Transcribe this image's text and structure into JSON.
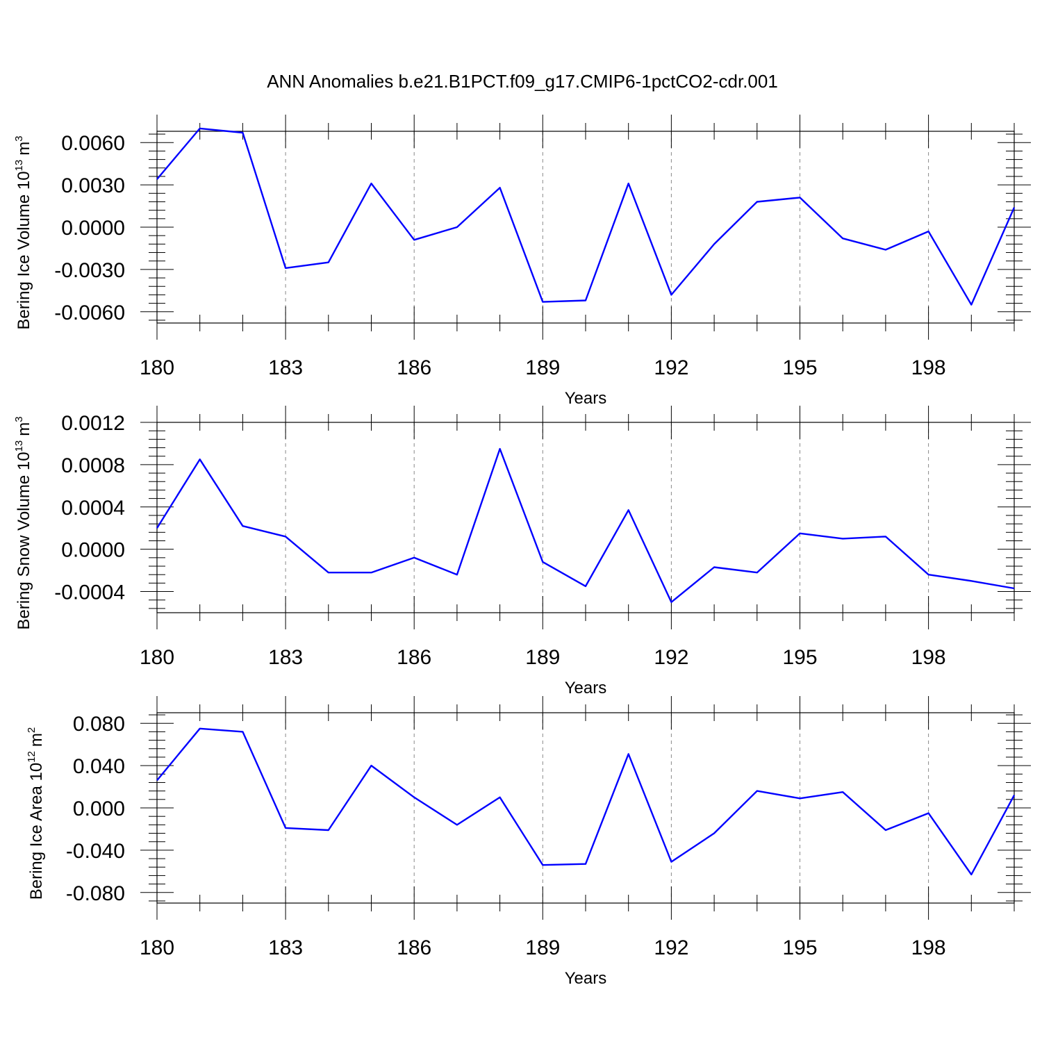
{
  "figure": {
    "title": "ANN Anomalies b.e21.B1PCT.f09_g17.CMIP6-1pctCO2-cdr.001",
    "line_color": "#0000ff"
  },
  "chart_data": [
    {
      "type": "line",
      "xlabel": "Years",
      "ylabel": {
        "text": "Bering Ice Volume 10",
        "exponent": "13",
        "unit": "m",
        "unit_exponent": "3"
      },
      "xlim": [
        180,
        200
      ],
      "ylim": [
        -0.0068,
        0.0068
      ],
      "x_ticks": [
        180,
        183,
        186,
        189,
        192,
        195,
        198
      ],
      "y_ticks": [
        -0.006,
        -0.003,
        0.0,
        0.003,
        0.006
      ],
      "y_tick_labels": [
        "-0.0060",
        "-0.0030",
        "0.0000",
        "0.0030",
        "0.0060"
      ],
      "grid": "vertical dashed at major x ticks",
      "x": [
        180,
        181,
        182,
        183,
        184,
        185,
        186,
        187,
        188,
        189,
        190,
        191,
        192,
        193,
        194,
        195,
        196,
        197,
        198,
        199,
        200
      ],
      "series": [
        {
          "values": [
            0.0034,
            0.007,
            0.0067,
            -0.0029,
            -0.0025,
            0.0031,
            -0.0009,
            0.0,
            0.0028,
            -0.0053,
            -0.0052,
            0.0031,
            -0.0048,
            -0.0012,
            0.0018,
            0.0021,
            -0.0008,
            -0.0016,
            -0.0003,
            -0.0055,
            0.0014
          ]
        }
      ]
    },
    {
      "type": "line",
      "xlabel": "Years",
      "ylabel": {
        "text": "Bering Snow Volume 10",
        "exponent": "13",
        "unit": "m",
        "unit_exponent": "3"
      },
      "xlim": [
        180,
        200
      ],
      "ylim": [
        -0.0006,
        0.0012
      ],
      "x_ticks": [
        180,
        183,
        186,
        189,
        192,
        195,
        198
      ],
      "y_ticks": [
        -0.0004,
        0.0,
        0.0004,
        0.0008,
        0.0012
      ],
      "y_tick_labels": [
        "-0.0004",
        "0.0000",
        "0.0004",
        "0.0008",
        "0.0012"
      ],
      "grid": "vertical dashed at major x ticks",
      "x": [
        180,
        181,
        182,
        183,
        184,
        185,
        186,
        187,
        188,
        189,
        190,
        191,
        192,
        193,
        194,
        195,
        196,
        197,
        198,
        199,
        200
      ],
      "series": [
        {
          "values": [
            0.0002,
            0.00085,
            0.00022,
            0.00012,
            -0.00022,
            -0.00022,
            -8e-05,
            -0.00024,
            0.00095,
            -0.00012,
            -0.00035,
            0.00037,
            -0.0005,
            -0.00017,
            -0.00022,
            0.00015,
            0.0001,
            0.00012,
            -0.00024,
            -0.0003,
            -0.00037
          ]
        }
      ]
    },
    {
      "type": "line",
      "xlabel": "Years",
      "ylabel": {
        "text": "Bering Ice Area 10",
        "exponent": "12",
        "unit": "m",
        "unit_exponent": "2"
      },
      "xlim": [
        180,
        200
      ],
      "ylim": [
        -0.09,
        0.09
      ],
      "x_ticks": [
        180,
        183,
        186,
        189,
        192,
        195,
        198
      ],
      "y_ticks": [
        -0.08,
        -0.04,
        0.0,
        0.04,
        0.08
      ],
      "y_tick_labels": [
        "-0.080",
        "-0.040",
        "0.000",
        "0.040",
        "0.080"
      ],
      "grid": "vertical dashed at major x ticks",
      "x": [
        180,
        181,
        182,
        183,
        184,
        185,
        186,
        187,
        188,
        189,
        190,
        191,
        192,
        193,
        194,
        195,
        196,
        197,
        198,
        199,
        200
      ],
      "series": [
        {
          "values": [
            0.026,
            0.075,
            0.072,
            -0.019,
            -0.021,
            0.04,
            0.01,
            -0.016,
            0.01,
            -0.054,
            -0.053,
            0.051,
            -0.051,
            -0.024,
            0.016,
            0.009,
            0.015,
            -0.021,
            -0.005,
            -0.063,
            0.012
          ]
        }
      ]
    }
  ]
}
